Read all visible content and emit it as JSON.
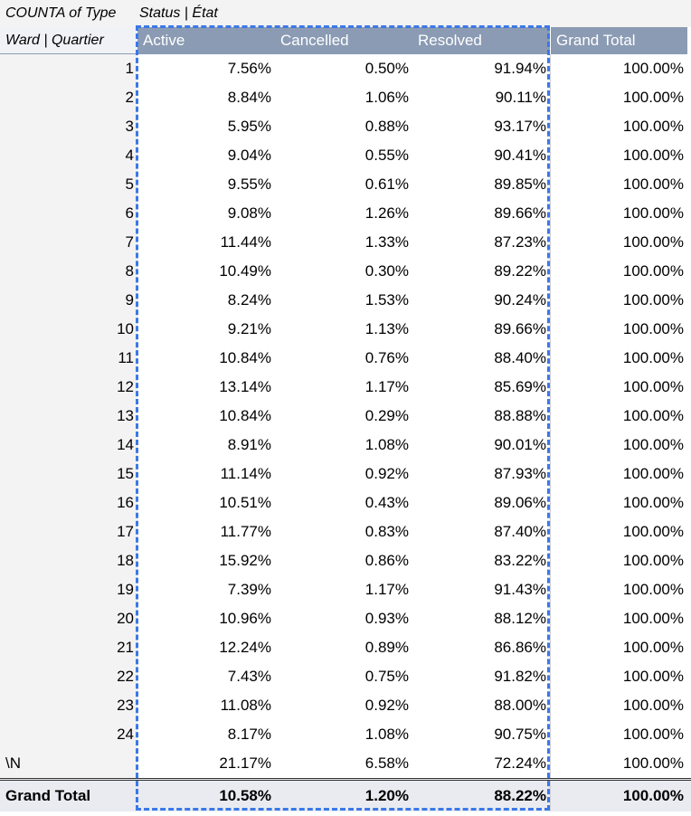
{
  "pivot": {
    "title": "COUNTA of Type",
    "column_field": "Status | État",
    "row_field": "Ward | Quartier",
    "columns": [
      "Active",
      "Cancelled",
      "Resolved",
      "Grand Total"
    ],
    "rows": [
      {
        "ward": "1",
        "active": "7.56%",
        "cancelled": "0.50%",
        "resolved": "91.94%",
        "total": "100.00%"
      },
      {
        "ward": "2",
        "active": "8.84%",
        "cancelled": "1.06%",
        "resolved": "90.11%",
        "total": "100.00%"
      },
      {
        "ward": "3",
        "active": "5.95%",
        "cancelled": "0.88%",
        "resolved": "93.17%",
        "total": "100.00%"
      },
      {
        "ward": "4",
        "active": "9.04%",
        "cancelled": "0.55%",
        "resolved": "90.41%",
        "total": "100.00%"
      },
      {
        "ward": "5",
        "active": "9.55%",
        "cancelled": "0.61%",
        "resolved": "89.85%",
        "total": "100.00%"
      },
      {
        "ward": "6",
        "active": "9.08%",
        "cancelled": "1.26%",
        "resolved": "89.66%",
        "total": "100.00%"
      },
      {
        "ward": "7",
        "active": "11.44%",
        "cancelled": "1.33%",
        "resolved": "87.23%",
        "total": "100.00%"
      },
      {
        "ward": "8",
        "active": "10.49%",
        "cancelled": "0.30%",
        "resolved": "89.22%",
        "total": "100.00%"
      },
      {
        "ward": "9",
        "active": "8.24%",
        "cancelled": "1.53%",
        "resolved": "90.24%",
        "total": "100.00%"
      },
      {
        "ward": "10",
        "active": "9.21%",
        "cancelled": "1.13%",
        "resolved": "89.66%",
        "total": "100.00%"
      },
      {
        "ward": "11",
        "active": "10.84%",
        "cancelled": "0.76%",
        "resolved": "88.40%",
        "total": "100.00%"
      },
      {
        "ward": "12",
        "active": "13.14%",
        "cancelled": "1.17%",
        "resolved": "85.69%",
        "total": "100.00%"
      },
      {
        "ward": "13",
        "active": "10.84%",
        "cancelled": "0.29%",
        "resolved": "88.88%",
        "total": "100.00%"
      },
      {
        "ward": "14",
        "active": "8.91%",
        "cancelled": "1.08%",
        "resolved": "90.01%",
        "total": "100.00%"
      },
      {
        "ward": "15",
        "active": "11.14%",
        "cancelled": "0.92%",
        "resolved": "87.93%",
        "total": "100.00%"
      },
      {
        "ward": "16",
        "active": "10.51%",
        "cancelled": "0.43%",
        "resolved": "89.06%",
        "total": "100.00%"
      },
      {
        "ward": "17",
        "active": "11.77%",
        "cancelled": "0.83%",
        "resolved": "87.40%",
        "total": "100.00%"
      },
      {
        "ward": "18",
        "active": "15.92%",
        "cancelled": "0.86%",
        "resolved": "83.22%",
        "total": "100.00%"
      },
      {
        "ward": "19",
        "active": "7.39%",
        "cancelled": "1.17%",
        "resolved": "91.43%",
        "total": "100.00%"
      },
      {
        "ward": "20",
        "active": "10.96%",
        "cancelled": "0.93%",
        "resolved": "88.12%",
        "total": "100.00%"
      },
      {
        "ward": "21",
        "active": "12.24%",
        "cancelled": "0.89%",
        "resolved": "86.86%",
        "total": "100.00%"
      },
      {
        "ward": "22",
        "active": "7.43%",
        "cancelled": "0.75%",
        "resolved": "91.82%",
        "total": "100.00%"
      },
      {
        "ward": "23",
        "active": "11.08%",
        "cancelled": "0.92%",
        "resolved": "88.00%",
        "total": "100.00%"
      },
      {
        "ward": "24",
        "active": "8.17%",
        "cancelled": "1.08%",
        "resolved": "90.75%",
        "total": "100.00%"
      },
      {
        "ward": "\\N",
        "active": "21.17%",
        "cancelled": "6.58%",
        "resolved": "72.24%",
        "total": "100.00%"
      }
    ],
    "grand_total": {
      "label": "Grand Total",
      "active": "10.58%",
      "cancelled": "1.20%",
      "resolved": "88.22%",
      "total": "100.00%"
    }
  },
  "colors": {
    "header_bg": "#8b9bb4",
    "row_label_bg": "#f3f3f3",
    "total_bg": "#e9ebf0",
    "selection": "#3b78e7"
  }
}
